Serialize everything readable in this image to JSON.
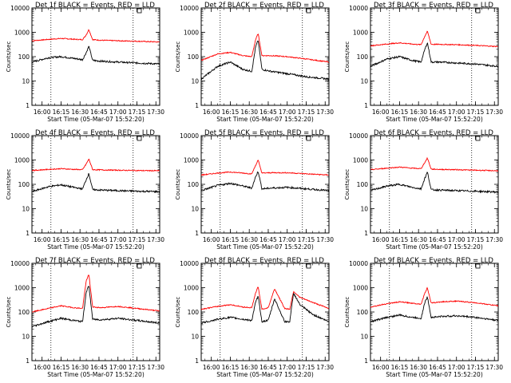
{
  "figure": {
    "x_axis_title": "Start Time (05-Mar-07 15:52:20)",
    "y_axis_title": "Counts/sec"
  },
  "chart_data": [
    {
      "type": "line",
      "title": "Det 1f BLACK = Events, RED = LLD",
      "xlabel": "Start Time (05-Mar-07 15:52:20)",
      "ylabel": "Counts/sec",
      "x_ticks": [
        "16:00",
        "16:15",
        "16:30",
        "16:45",
        "17:00",
        "17:15",
        "17:30"
      ],
      "y_ticks": [
        "1",
        "10",
        "100",
        "1000",
        "10000"
      ],
      "y_scale": "log",
      "ylim": [
        1,
        10000
      ],
      "xlim": [
        "15:52",
        "17:33"
      ],
      "vlines": [
        "16:07",
        "17:12"
      ],
      "series": [
        {
          "name": "RED = LLD",
          "color": "#ff0000",
          "x": [
            "15:52",
            "16:05",
            "16:15",
            "16:25",
            "16:32",
            "16:35",
            "16:37",
            "16:40",
            "16:47",
            "17:00",
            "17:15",
            "17:33"
          ],
          "y": [
            450,
            510,
            560,
            520,
            500,
            800,
            1300,
            500,
            470,
            450,
            430,
            400
          ]
        },
        {
          "name": "BLACK = Events",
          "color": "#000000",
          "x": [
            "15:52",
            "16:05",
            "16:15",
            "16:25",
            "16:32",
            "16:35",
            "16:37",
            "16:40",
            "16:47",
            "17:00",
            "17:15",
            "17:33"
          ],
          "y": [
            60,
            90,
            100,
            85,
            75,
            150,
            270,
            70,
            65,
            60,
            55,
            50
          ]
        }
      ]
    },
    {
      "type": "line",
      "title": "Det 2f BLACK = Events, RED = LLD",
      "xlabel": "Start Time (05-Mar-07 15:52:20)",
      "ylabel": "Counts/sec",
      "x_ticks": [
        "16:00",
        "16:15",
        "16:30",
        "16:45",
        "17:00",
        "17:15",
        "17:30"
      ],
      "y_ticks": [
        "1",
        "10",
        "100",
        "1000",
        "10000"
      ],
      "y_scale": "log",
      "ylim": [
        1,
        10000
      ],
      "xlim": [
        "15:52",
        "17:33"
      ],
      "vlines": [
        "16:07",
        "17:12"
      ],
      "series": [
        {
          "name": "RED = LLD",
          "color": "#ff0000",
          "x": [
            "15:52",
            "16:05",
            "16:15",
            "16:25",
            "16:32",
            "16:35",
            "16:37",
            "16:40",
            "16:47",
            "17:00",
            "17:15",
            "17:33"
          ],
          "y": [
            70,
            130,
            150,
            110,
            100,
            500,
            900,
            110,
            110,
            100,
            80,
            60
          ]
        },
        {
          "name": "BLACK = Events",
          "color": "#000000",
          "x": [
            "15:52",
            "16:05",
            "16:15",
            "16:25",
            "16:32",
            "16:35",
            "16:37",
            "16:40",
            "16:47",
            "17:00",
            "17:15",
            "17:33"
          ],
          "y": [
            12,
            40,
            60,
            30,
            25,
            250,
            480,
            30,
            25,
            20,
            15,
            12
          ]
        }
      ]
    },
    {
      "type": "line",
      "title": "Det 3f BLACK = Events, RED = LLD",
      "xlabel": "Start Time (05-Mar-07 15:52:20)",
      "ylabel": "Counts/sec",
      "x_ticks": [
        "16:00",
        "16:15",
        "16:30",
        "16:45",
        "17:00",
        "17:15",
        "17:30"
      ],
      "y_ticks": [
        "1",
        "10",
        "100",
        "1000",
        "10000"
      ],
      "y_scale": "log",
      "ylim": [
        1,
        10000
      ],
      "xlim": [
        "15:52",
        "17:33"
      ],
      "vlines": [
        "16:07",
        "17:12"
      ],
      "series": [
        {
          "name": "RED = LLD",
          "color": "#ff0000",
          "x": [
            "15:52",
            "16:05",
            "16:15",
            "16:25",
            "16:32",
            "16:35",
            "16:37",
            "16:40",
            "16:47",
            "17:00",
            "17:15",
            "17:33"
          ],
          "y": [
            280,
            330,
            370,
            330,
            310,
            700,
            1100,
            320,
            320,
            310,
            290,
            260
          ]
        },
        {
          "name": "BLACK = Events",
          "color": "#000000",
          "x": [
            "15:52",
            "16:05",
            "16:15",
            "16:25",
            "16:32",
            "16:35",
            "16:37",
            "16:40",
            "16:47",
            "17:00",
            "17:15",
            "17:33"
          ],
          "y": [
            40,
            80,
            100,
            70,
            60,
            200,
            380,
            60,
            60,
            55,
            50,
            40
          ]
        }
      ]
    },
    {
      "type": "line",
      "title": "Det 4f BLACK = Events, RED = LLD",
      "xlabel": "Start Time (05-Mar-07 15:52:20)",
      "ylabel": "Counts/sec",
      "x_ticks": [
        "16:00",
        "16:15",
        "16:30",
        "16:45",
        "17:00",
        "17:15",
        "17:30"
      ],
      "y_ticks": [
        "1",
        "10",
        "100",
        "1000",
        "10000"
      ],
      "y_scale": "log",
      "ylim": [
        1,
        10000
      ],
      "xlim": [
        "15:52",
        "17:33"
      ],
      "vlines": [
        "16:07",
        "17:12"
      ],
      "series": [
        {
          "name": "RED = LLD",
          "color": "#ff0000",
          "x": [
            "15:52",
            "16:05",
            "16:15",
            "16:25",
            "16:32",
            "16:35",
            "16:37",
            "16:40",
            "16:47",
            "17:00",
            "17:15",
            "17:33"
          ],
          "y": [
            370,
            410,
            440,
            410,
            400,
            700,
            1100,
            400,
            390,
            380,
            370,
            360
          ]
        },
        {
          "name": "BLACK = Events",
          "color": "#000000",
          "x": [
            "15:52",
            "16:05",
            "16:15",
            "16:25",
            "16:32",
            "16:35",
            "16:37",
            "16:40",
            "16:47",
            "17:00",
            "17:15",
            "17:33"
          ],
          "y": [
            50,
            80,
            95,
            75,
            65,
            160,
            280,
            60,
            58,
            55,
            52,
            50
          ]
        }
      ]
    },
    {
      "type": "line",
      "title": "Det 5f BLACK = Events, RED = LLD",
      "xlabel": "Start Time (05-Mar-07 15:52:20)",
      "ylabel": "Counts/sec",
      "x_ticks": [
        "16:00",
        "16:15",
        "16:30",
        "16:45",
        "17:00",
        "17:15",
        "17:30"
      ],
      "y_ticks": [
        "1",
        "10",
        "100",
        "1000",
        "10000"
      ],
      "y_scale": "log",
      "ylim": [
        1,
        10000
      ],
      "xlim": [
        "15:52",
        "17:33"
      ],
      "vlines": [
        "16:07",
        "17:12"
      ],
      "series": [
        {
          "name": "RED = LLD",
          "color": "#ff0000",
          "x": [
            "15:52",
            "16:05",
            "16:15",
            "16:25",
            "16:32",
            "16:35",
            "16:37",
            "16:40",
            "16:47",
            "17:00",
            "17:15",
            "17:33"
          ],
          "y": [
            240,
            290,
            320,
            290,
            270,
            600,
            1000,
            290,
            300,
            300,
            270,
            240
          ]
        },
        {
          "name": "BLACK = Events",
          "color": "#000000",
          "x": [
            "15:52",
            "16:05",
            "16:15",
            "16:25",
            "16:32",
            "16:35",
            "16:37",
            "16:40",
            "16:47",
            "17:00",
            "17:15",
            "17:33"
          ],
          "y": [
            55,
            90,
            110,
            85,
            70,
            200,
            350,
            65,
            70,
            75,
            65,
            55
          ]
        }
      ]
    },
    {
      "type": "line",
      "title": "Det 6f BLACK = Events, RED = LLD",
      "xlabel": "Start Time (05-Mar-07 15:52:20)",
      "ylabel": "Counts/sec",
      "x_ticks": [
        "16:00",
        "16:15",
        "16:30",
        "16:45",
        "17:00",
        "17:15",
        "17:30"
      ],
      "y_ticks": [
        "1",
        "10",
        "100",
        "1000",
        "10000"
      ],
      "y_scale": "log",
      "ylim": [
        1,
        10000
      ],
      "xlim": [
        "15:52",
        "17:33"
      ],
      "vlines": [
        "16:07",
        "17:12"
      ],
      "series": [
        {
          "name": "RED = LLD",
          "color": "#ff0000",
          "x": [
            "15:52",
            "16:05",
            "16:15",
            "16:25",
            "16:32",
            "16:35",
            "16:37",
            "16:40",
            "16:47",
            "17:00",
            "17:15",
            "17:33"
          ],
          "y": [
            400,
            460,
            510,
            460,
            440,
            800,
            1200,
            420,
            410,
            400,
            380,
            360
          ]
        },
        {
          "name": "BLACK = Events",
          "color": "#000000",
          "x": [
            "15:52",
            "16:05",
            "16:15",
            "16:25",
            "16:32",
            "16:35",
            "16:37",
            "16:40",
            "16:47",
            "17:00",
            "17:15",
            "17:33"
          ],
          "y": [
            55,
            85,
            100,
            75,
            65,
            180,
            320,
            60,
            58,
            55,
            52,
            48
          ]
        }
      ]
    },
    {
      "type": "line",
      "title": "Det 7f BLACK = Events, RED = LLD",
      "xlabel": "Start Time (05-Mar-07 15:52:20)",
      "ylabel": "Counts/sec",
      "x_ticks": [
        "16:00",
        "16:15",
        "16:30",
        "16:45",
        "17:00",
        "17:15",
        "17:30"
      ],
      "y_ticks": [
        "1",
        "10",
        "100",
        "1000",
        "10000"
      ],
      "y_scale": "log",
      "ylim": [
        1,
        10000
      ],
      "xlim": [
        "15:52",
        "17:33"
      ],
      "vlines": [
        "16:07",
        "17:12"
      ],
      "series": [
        {
          "name": "RED = LLD",
          "color": "#ff0000",
          "x": [
            "15:52",
            "16:05",
            "16:15",
            "16:25",
            "16:32",
            "16:35",
            "16:37",
            "16:40",
            "16:47",
            "17:00",
            "17:15",
            "17:33"
          ],
          "y": [
            100,
            140,
            180,
            150,
            140,
            2000,
            3500,
            160,
            150,
            170,
            140,
            110
          ]
        },
        {
          "name": "BLACK = Events",
          "color": "#000000",
          "x": [
            "15:52",
            "16:05",
            "16:15",
            "16:25",
            "16:32",
            "16:35",
            "16:37",
            "16:40",
            "16:47",
            "17:00",
            "17:15",
            "17:33"
          ],
          "y": [
            25,
            40,
            55,
            45,
            40,
            700,
            1200,
            50,
            48,
            55,
            45,
            35
          ]
        }
      ]
    },
    {
      "type": "line",
      "title": "Det 8f BLACK = Events, RED = LLD",
      "xlabel": "Start Time (05-Mar-07 15:52:20)",
      "ylabel": "Counts/sec",
      "x_ticks": [
        "16:00",
        "16:15",
        "16:30",
        "16:45",
        "17:00",
        "17:15",
        "17:30"
      ],
      "y_ticks": [
        "1",
        "10",
        "100",
        "1000",
        "10000"
      ],
      "y_scale": "log",
      "ylim": [
        1,
        10000
      ],
      "xlim": [
        "15:52",
        "17:33"
      ],
      "vlines": [
        "16:07",
        "17:12"
      ],
      "series": [
        {
          "name": "RED = LLD",
          "color": "#ff0000",
          "x": [
            "15:52",
            "16:05",
            "16:15",
            "16:25",
            "16:32",
            "16:35",
            "16:37",
            "16:40",
            "16:45",
            "16:50",
            "16:58",
            "17:02",
            "17:05",
            "17:10",
            "17:20",
            "17:33"
          ],
          "y": [
            130,
            170,
            200,
            160,
            150,
            600,
            1100,
            130,
            150,
            900,
            140,
            130,
            700,
            400,
            250,
            140
          ]
        },
        {
          "name": "BLACK = Events",
          "color": "#000000",
          "x": [
            "15:52",
            "16:05",
            "16:15",
            "16:25",
            "16:32",
            "16:35",
            "16:37",
            "16:40",
            "16:45",
            "16:50",
            "16:58",
            "17:02",
            "17:05",
            "17:10",
            "17:20",
            "17:33"
          ],
          "y": [
            35,
            50,
            60,
            50,
            45,
            250,
            450,
            40,
            45,
            350,
            40,
            40,
            600,
            200,
            80,
            40
          ]
        }
      ]
    },
    {
      "type": "line",
      "title": "Det 9f BLACK = Events, RED = LLD",
      "xlabel": "Start Time (05-Mar-07 15:52:20)",
      "ylabel": "Counts/sec",
      "x_ticks": [
        "16:00",
        "16:15",
        "16:30",
        "16:45",
        "17:00",
        "17:15",
        "17:30"
      ],
      "y_ticks": [
        "1",
        "10",
        "100",
        "1000",
        "10000"
      ],
      "y_scale": "log",
      "ylim": [
        1,
        10000
      ],
      "xlim": [
        "15:52",
        "17:33"
      ],
      "vlines": [
        "16:07",
        "17:12"
      ],
      "series": [
        {
          "name": "RED = LLD",
          "color": "#ff0000",
          "x": [
            "15:52",
            "16:05",
            "16:15",
            "16:25",
            "16:32",
            "16:35",
            "16:37",
            "16:40",
            "16:47",
            "17:00",
            "17:15",
            "17:33"
          ],
          "y": [
            160,
            220,
            260,
            230,
            210,
            600,
            1000,
            230,
            260,
            280,
            240,
            180
          ]
        },
        {
          "name": "BLACK = Events",
          "color": "#000000",
          "x": [
            "15:52",
            "16:05",
            "16:15",
            "16:25",
            "16:32",
            "16:35",
            "16:37",
            "16:40",
            "16:47",
            "17:00",
            "17:15",
            "17:33"
          ],
          "y": [
            40,
            60,
            75,
            60,
            55,
            250,
            420,
            60,
            65,
            70,
            60,
            45
          ]
        }
      ]
    }
  ]
}
